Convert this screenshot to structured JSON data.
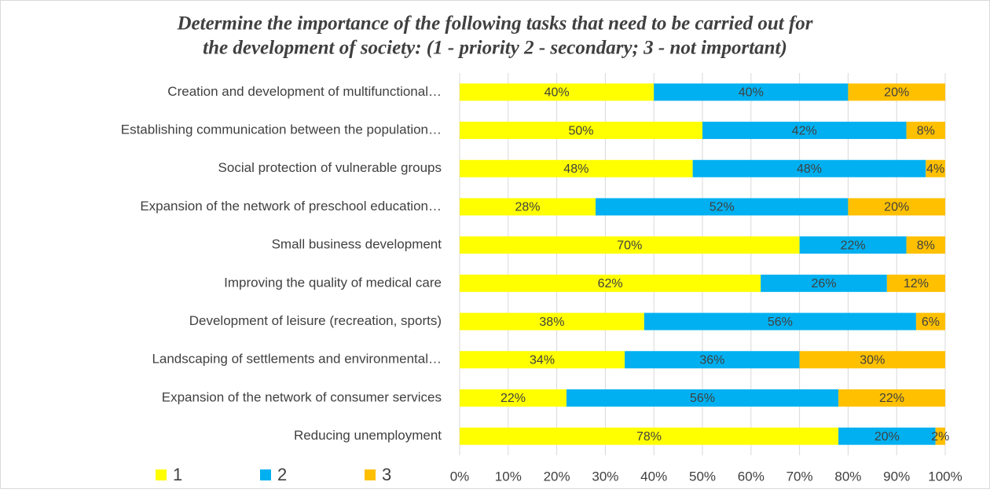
{
  "chart_data": {
    "type": "stacked-barh",
    "title": [
      "Determine the importance of the following tasks that need to be carried out for",
      "the development of society: (1 - priority 2 - secondary; 3 - not important)"
    ],
    "categories": [
      "Creation and development of multifunctional…",
      "Establishing communication between the population…",
      "Social protection of vulnerable groups",
      "Expansion of the network of preschool education…",
      "Small business development",
      "Improving the quality of medical care",
      "Development of leisure (recreation, sports)",
      "Landscaping of settlements and environmental…",
      "Expansion of the network of consumer services",
      "Reducing unemployment"
    ],
    "series": [
      {
        "name": "1",
        "color": "#ffff00",
        "values": [
          40,
          50,
          48,
          28,
          70,
          62,
          38,
          34,
          22,
          78
        ],
        "value_labels": [
          "40%",
          "50%",
          "48%",
          "28%",
          "70%",
          "62%",
          "38%",
          "34%",
          "22%",
          "78%"
        ]
      },
      {
        "name": "2",
        "color": "#00b0f0",
        "values": [
          40,
          42,
          48,
          52,
          22,
          26,
          56,
          36,
          56,
          20
        ],
        "value_labels": [
          "40%",
          "42%",
          "48%",
          "52%",
          "22%",
          "26%",
          "56%",
          "36%",
          "56%",
          "20%"
        ]
      },
      {
        "name": "3",
        "color": "#ffc000",
        "values": [
          20,
          8,
          4,
          20,
          8,
          12,
          6,
          30,
          22,
          2
        ],
        "value_labels": [
          "20%",
          "8%",
          "4%",
          "20%",
          "8%",
          "12%",
          "6%",
          "30%",
          "22%",
          "2%"
        ]
      }
    ],
    "xlim": [
      0,
      100
    ],
    "xticks": [
      {
        "value": 0,
        "label": "0%"
      },
      {
        "value": 10,
        "label": "10%"
      },
      {
        "value": 20,
        "label": "20%"
      },
      {
        "value": 30,
        "label": "30%"
      },
      {
        "value": 40,
        "label": "40%"
      },
      {
        "value": 50,
        "label": "50%"
      },
      {
        "value": 60,
        "label": "60%"
      },
      {
        "value": 70,
        "label": "70%"
      },
      {
        "value": 80,
        "label": "80%"
      },
      {
        "value": 90,
        "label": "90%"
      },
      {
        "value": 100,
        "label": "100%"
      }
    ],
    "grid": true
  }
}
